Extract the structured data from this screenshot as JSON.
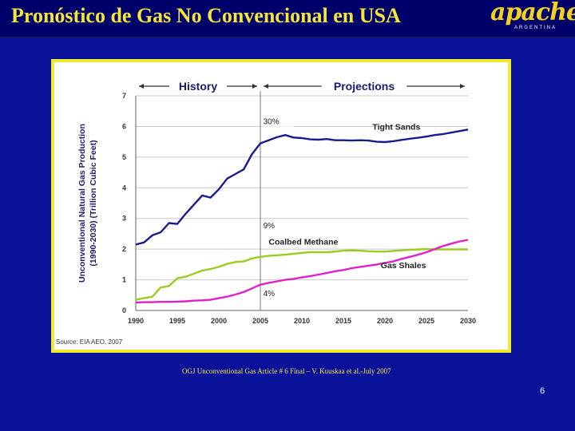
{
  "slide": {
    "title": "Pronóstico de Gas No Convencional en USA",
    "logo_text": "apache",
    "logo_sub": "ARGENTINA",
    "citation": "OGJ Unconventional Gas Article # 6 Final – V. Kuuskaa et al.-July 2007",
    "page_number": "6",
    "source": "Source: EIA AEO, 2007"
  },
  "colors": {
    "background": "#0a129a",
    "title": "#f5e63a",
    "tight_sands": "#1a1c8c",
    "coalbed_methane": "#9acd1e",
    "gas_shales": "#e020c8"
  },
  "chart_data": {
    "type": "line",
    "ylabel": "Unconventional Natural Gas Production (1990-2030) (Trillion Cubic Feet)",
    "xlabel": "",
    "xlim": [
      1990,
      2030
    ],
    "ylim": [
      0,
      7
    ],
    "xticks": [
      1990,
      1995,
      2000,
      2005,
      2010,
      2015,
      2020,
      2025,
      2030
    ],
    "yticks": [
      0,
      1,
      2,
      3,
      4,
      5,
      6,
      7
    ],
    "grid": true,
    "divider_year": 2005,
    "period_labels": [
      {
        "text": "History",
        "from": 1990,
        "to": 2005
      },
      {
        "text": "Projections",
        "from": 2005,
        "to": 2030
      }
    ],
    "percent_labels": [
      {
        "text": "30%",
        "x": 2006.5,
        "y": 6.1
      },
      {
        "text": "9%",
        "x": 2006.5,
        "y": 2.7
      },
      {
        "text": "4%",
        "x": 2006.5,
        "y": 0.5
      }
    ],
    "x": [
      1990,
      1991,
      1992,
      1993,
      1994,
      1995,
      1996,
      1997,
      1998,
      1999,
      2000,
      2001,
      2002,
      2003,
      2004,
      2005,
      2006,
      2007,
      2008,
      2009,
      2010,
      2011,
      2012,
      2013,
      2014,
      2015,
      2016,
      2017,
      2018,
      2019,
      2020,
      2021,
      2022,
      2023,
      2024,
      2025,
      2026,
      2027,
      2028,
      2029,
      2030
    ],
    "series": [
      {
        "name": "Tight Sands",
        "color": "#1a1c8c",
        "label_pos": {
          "x": 2018.5,
          "y": 5.9
        },
        "values": [
          2.15,
          2.22,
          2.45,
          2.55,
          2.85,
          2.82,
          3.15,
          3.45,
          3.75,
          3.68,
          3.95,
          4.3,
          4.45,
          4.6,
          5.1,
          5.45,
          5.55,
          5.65,
          5.72,
          5.64,
          5.62,
          5.58,
          5.57,
          5.59,
          5.55,
          5.55,
          5.54,
          5.55,
          5.54,
          5.5,
          5.49,
          5.52,
          5.56,
          5.6,
          5.63,
          5.67,
          5.72,
          5.75,
          5.8,
          5.85,
          5.9
        ]
      },
      {
        "name": "Coalbed Methane",
        "color": "#9acd1e",
        "label_pos": {
          "x": 2006,
          "y": 2.15
        },
        "values": [
          0.35,
          0.4,
          0.45,
          0.75,
          0.8,
          1.05,
          1.1,
          1.2,
          1.3,
          1.35,
          1.42,
          1.52,
          1.58,
          1.6,
          1.7,
          1.75,
          1.78,
          1.8,
          1.82,
          1.85,
          1.88,
          1.9,
          1.9,
          1.9,
          1.92,
          1.95,
          1.96,
          1.95,
          1.93,
          1.92,
          1.92,
          1.94,
          1.96,
          1.98,
          1.99,
          2.0,
          1.99,
          1.99,
          1.99,
          1.99,
          1.99
        ]
      },
      {
        "name": "Gas Shales",
        "color": "#e020c8",
        "label_pos": {
          "x": 2019.5,
          "y": 1.38
        },
        "values": [
          0.26,
          0.27,
          0.27,
          0.28,
          0.28,
          0.29,
          0.3,
          0.32,
          0.33,
          0.35,
          0.4,
          0.45,
          0.52,
          0.6,
          0.72,
          0.84,
          0.9,
          0.95,
          1.0,
          1.03,
          1.08,
          1.12,
          1.17,
          1.22,
          1.28,
          1.32,
          1.38,
          1.42,
          1.46,
          1.5,
          1.55,
          1.6,
          1.68,
          1.75,
          1.82,
          1.9,
          2.0,
          2.1,
          2.18,
          2.25,
          2.3
        ]
      }
    ]
  }
}
